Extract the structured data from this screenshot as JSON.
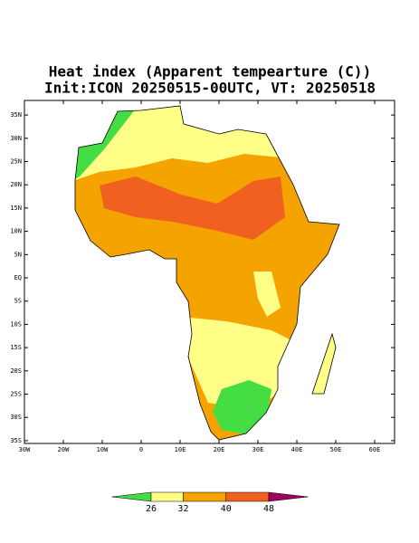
{
  "title": "Heat index (Apparent tempearture (C))",
  "subtitle": "Init:ICON 20250515-00UTC, VT: 20250518",
  "lat_labels": [
    {
      "value": 35,
      "label": "35N"
    },
    {
      "value": 30,
      "label": "30N"
    },
    {
      "value": 25,
      "label": "25N"
    },
    {
      "value": 20,
      "label": "20N"
    },
    {
      "value": 15,
      "label": "15N"
    },
    {
      "value": 10,
      "label": "10N"
    },
    {
      "value": 5,
      "label": "5N"
    },
    {
      "value": 0,
      "label": "EQ"
    },
    {
      "value": -5,
      "label": "5S"
    },
    {
      "value": -10,
      "label": "10S"
    },
    {
      "value": -15,
      "label": "15S"
    },
    {
      "value": -20,
      "label": "20S"
    },
    {
      "value": -25,
      "label": "25S"
    },
    {
      "value": -30,
      "label": "30S"
    },
    {
      "value": -35,
      "label": "35S"
    }
  ],
  "lon_labels": [
    {
      "value": -30,
      "label": "30W"
    },
    {
      "value": -20,
      "label": "20W"
    },
    {
      "value": -10,
      "label": "10W"
    },
    {
      "value": 0,
      "label": "0"
    },
    {
      "value": 10,
      "label": "10E"
    },
    {
      "value": 20,
      "label": "20E"
    },
    {
      "value": 30,
      "label": "30E"
    },
    {
      "value": 40,
      "label": "40E"
    },
    {
      "value": 50,
      "label": "50E"
    },
    {
      "value": 60,
      "label": "60E"
    }
  ],
  "colorbar": {
    "ticks": [
      26,
      32,
      40,
      48
    ],
    "colors": [
      "#44dd44",
      "#ffff88",
      "#f5a300",
      "#f06020",
      "#a00060"
    ]
  }
}
